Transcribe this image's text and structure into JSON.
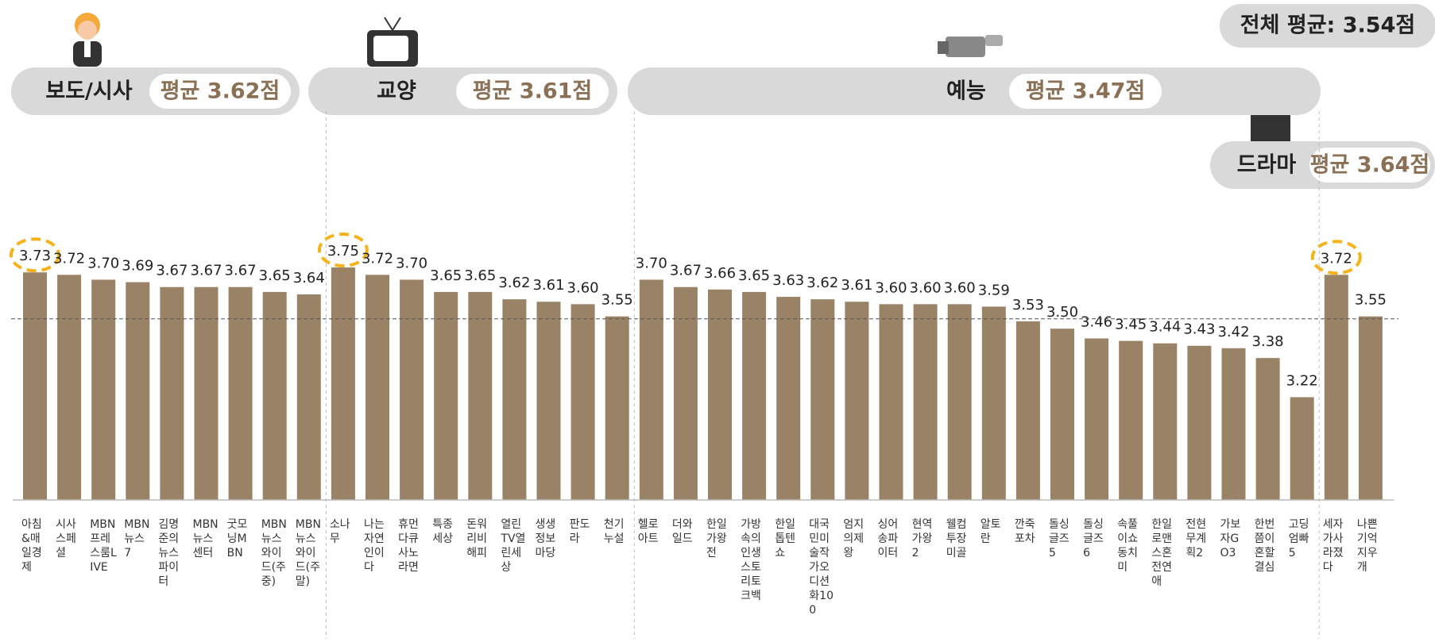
{
  "chart_data": {
    "type": "bar",
    "color": "#9a8266",
    "ylim": [
      2.8,
      3.9
    ],
    "overall_average": {
      "value": 3.54,
      "label": "전체 평균: 3.54점"
    },
    "groups": [
      {
        "name": "보도/시사",
        "average": {
          "value": 3.62,
          "label": "평균 3.62점"
        },
        "categories": [
          "아침&매일경제",
          "시사스페셜",
          "MBN프레스룸LIVE",
          "MBN뉴스7",
          "김명준의뉴스파이터",
          "MBN뉴스센터",
          "굿모닝MBN",
          "MBN뉴스와이드(주중)",
          "MBN뉴스와이드(주말)"
        ],
        "values": [
          3.73,
          3.72,
          3.7,
          3.69,
          3.67,
          3.67,
          3.67,
          3.65,
          3.64
        ],
        "value_labels": [
          "3.73",
          "3.72",
          "3.70",
          "3.69",
          "3.67",
          "3.67",
          "3.67",
          "3.65",
          "3.64"
        ]
      },
      {
        "name": "교양",
        "average": {
          "value": 3.61,
          "label": "평균 3.61점"
        },
        "categories": [
          "소나무",
          "나는자연인이다",
          "휴먼다큐사노라면",
          "특종세상",
          "돈워리비해피",
          "열린TV열린세상",
          "생생정보마당",
          "판도라",
          "천기누설"
        ],
        "values": [
          3.75,
          3.72,
          3.7,
          3.65,
          3.65,
          3.62,
          3.61,
          3.6,
          3.55
        ],
        "value_labels": [
          "3.75",
          "3.72",
          "3.70",
          "3.65",
          "3.65",
          "3.62",
          "3.61",
          "3.60",
          "3.55"
        ]
      },
      {
        "name": "예능",
        "average": {
          "value": 3.47,
          "label": "평균 3.47점"
        },
        "categories": [
          "헬로아트",
          "더와일드",
          "한일가왕전",
          "가방속의인생스토리토크백",
          "한일톱텐쇼",
          "대국민미술작가오디션화100",
          "엄지의제왕",
          "싱어송파이터",
          "현역가왕2",
          "웰컴투장미골",
          "알토란",
          "깐죽포차",
          "돌싱글즈5",
          "돌싱글즈6",
          "속풀이쇼동치미",
          "한일로맨스혼전연애",
          "전현무계획2",
          "가보자GO3",
          "한번쯤이혼할결심",
          "고딩엄빠5"
        ],
        "values": [
          3.7,
          3.67,
          3.66,
          3.65,
          3.63,
          3.62,
          3.61,
          3.6,
          3.6,
          3.6,
          3.59,
          3.53,
          3.5,
          3.46,
          3.45,
          3.44,
          3.43,
          3.42,
          3.38,
          3.22
        ],
        "value_labels": [
          "3.70",
          "3.67",
          "3.66",
          "3.65",
          "3.63",
          "3.62",
          "3.61",
          "3.60",
          "3.60",
          "3.60",
          "3.59",
          "3.53",
          "3.50",
          "3.46",
          "3.45",
          "3.44",
          "3.43",
          "3.42",
          "3.38",
          "3.22"
        ]
      },
      {
        "name": "드라마",
        "average": {
          "value": 3.64,
          "label": "평균 3.64점"
        },
        "categories": [
          "세자가사라졌다",
          "나쁜기억지우개"
        ],
        "values": [
          3.72,
          3.55
        ],
        "value_labels": [
          "3.72",
          "3.55"
        ]
      }
    ]
  }
}
